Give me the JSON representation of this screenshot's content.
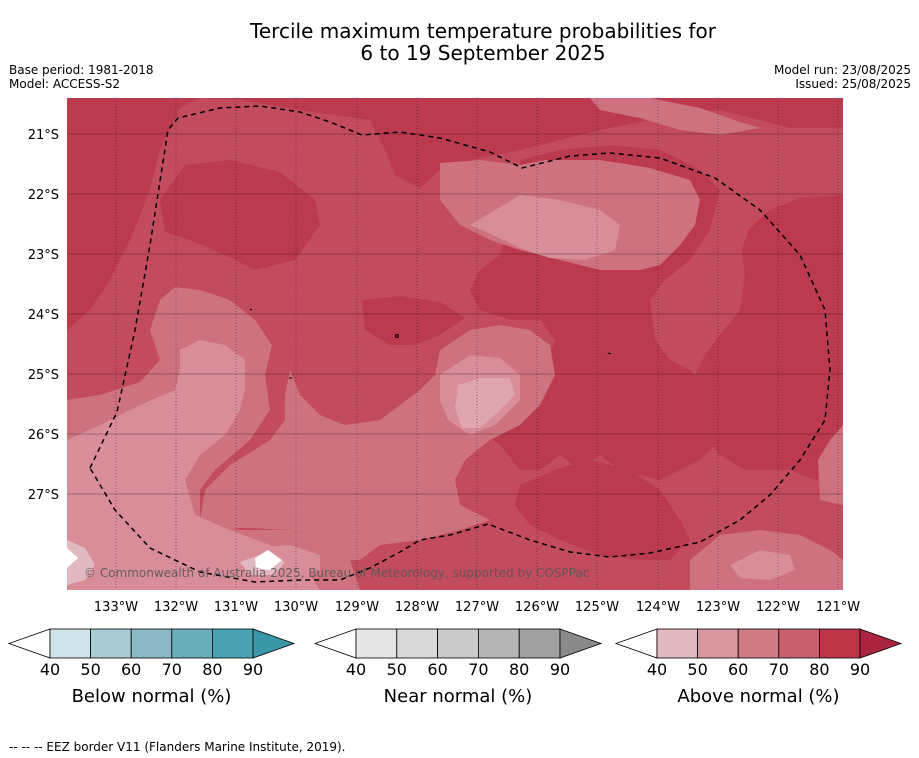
{
  "header": {
    "title_line1": "Tercile maximum temperature probabilities for",
    "title_line2": "6 to 19 September 2025",
    "base_period": "Base period: 1981-2018",
    "model": "Model: ACCESS-S2",
    "model_run": "Model run: 23/08/2025",
    "issued": "Issued: 25/08/2025"
  },
  "map": {
    "lat_labels": [
      "21°S",
      "22°S",
      "23°S",
      "24°S",
      "25°S",
      "26°S",
      "27°S"
    ],
    "lon_labels": [
      "133°W",
      "132°W",
      "131°W",
      "130°W",
      "129°W",
      "128°W",
      "127°W",
      "126°W",
      "125°W",
      "124°W",
      "123°W",
      "122°W",
      "121°W"
    ],
    "copyright": "© Commonwealth of Australia 2025, Bureau of Meteorology, supported by COSPPac"
  },
  "colorbars": [
    {
      "label": "Below normal (%)",
      "ticks": [
        "40",
        "50",
        "60",
        "70",
        "80",
        "90"
      ],
      "colors": [
        "#cde3ea",
        "#a9cbd3",
        "#8bbac6",
        "#6aaebc",
        "#4aa3b3",
        "#3a97a8"
      ]
    },
    {
      "label": "Near normal (%)",
      "ticks": [
        "40",
        "50",
        "60",
        "70",
        "80",
        "90"
      ],
      "colors": [
        "#e6e6e6",
        "#d9d9d9",
        "#c9c9c9",
        "#b5b5b5",
        "#a0a0a0",
        "#8a8a8a"
      ]
    },
    {
      "label": "Above normal (%)",
      "ticks": [
        "40",
        "50",
        "60",
        "70",
        "80",
        "90"
      ],
      "colors": [
        "#e3b9c1",
        "#d8969f",
        "#cf7a85",
        "#c7606c",
        "#bd3549",
        "#ac2540"
      ]
    }
  ],
  "footer": {
    "legend_text": "--  --  -- EEZ border V11 (Flanders Marine Institute, 2019)."
  }
}
